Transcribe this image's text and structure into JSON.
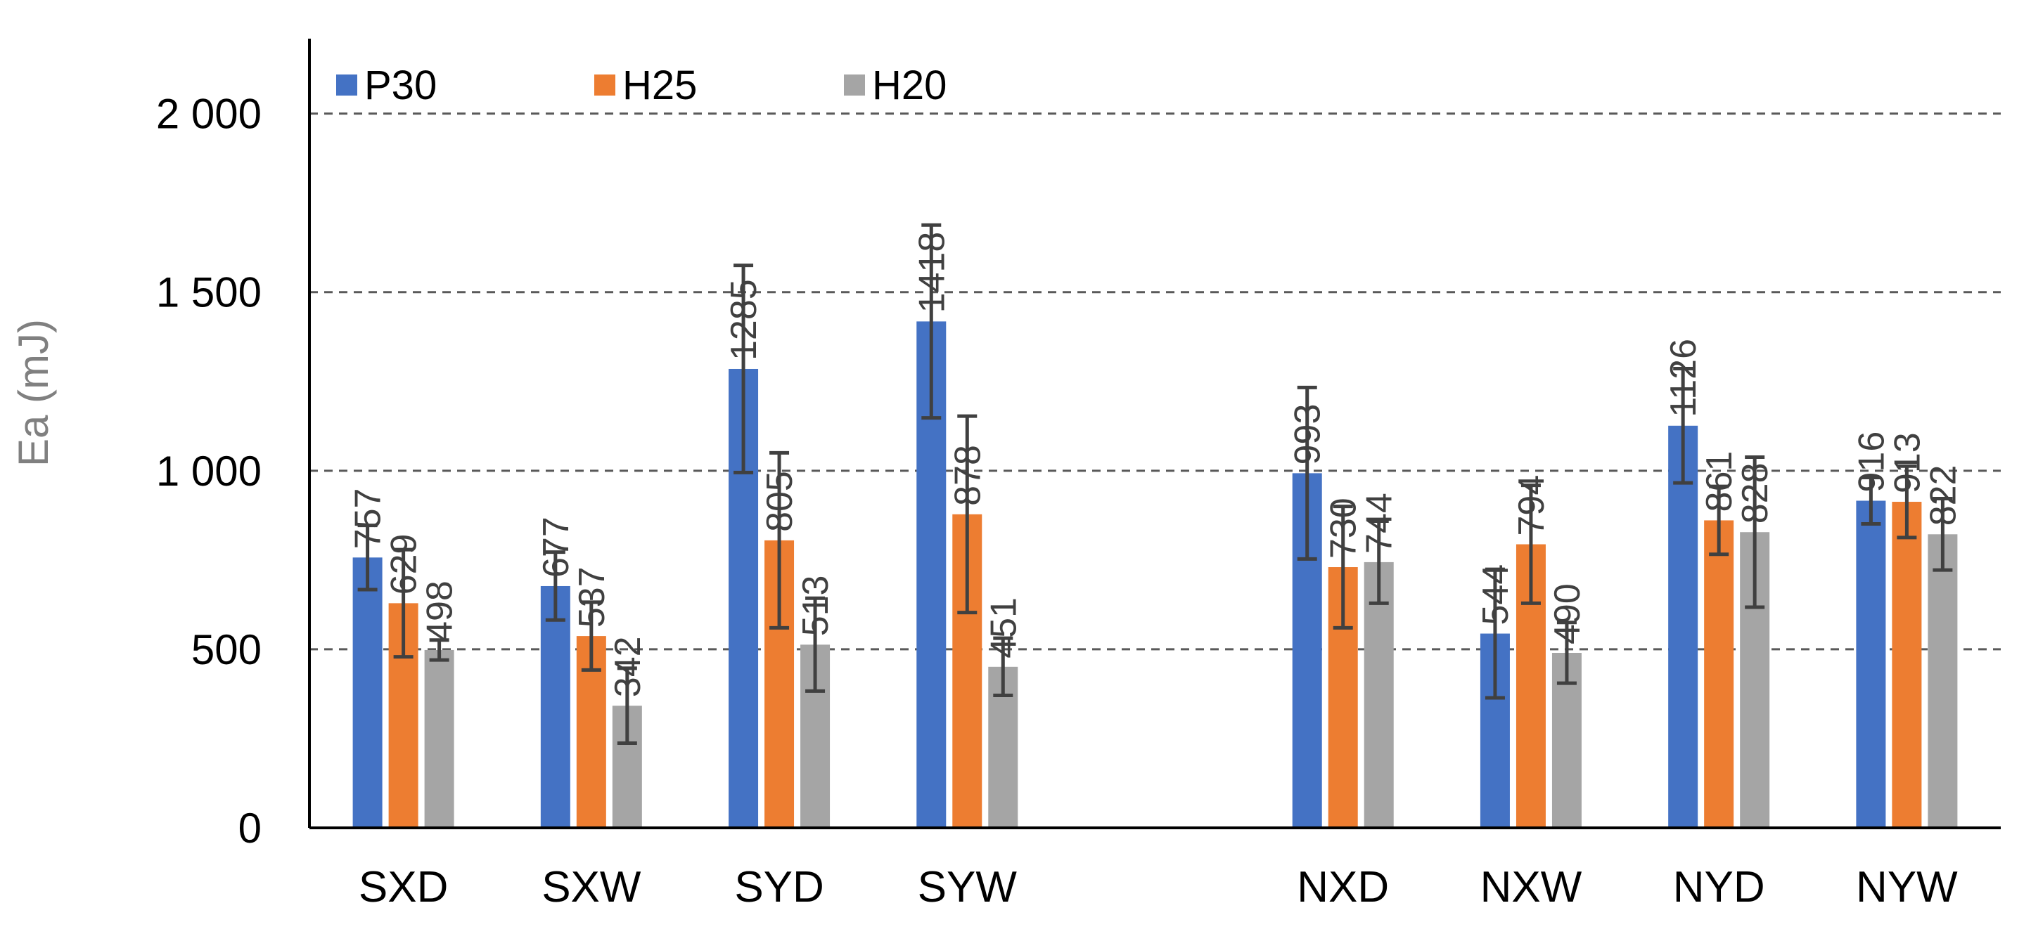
{
  "chart_data": {
    "type": "bar",
    "ylabel": "Ea (mJ)",
    "xlabel": "",
    "ylim": [
      0,
      2200
    ],
    "yticks": [
      0,
      500,
      1000,
      1500,
      2000
    ],
    "ytick_labels": [
      "0",
      "500",
      "1 000",
      "1 500",
      "2 000"
    ],
    "grid": true,
    "legend_position": "top-left",
    "categories": [
      "SXD",
      "SXW",
      "SYD",
      "SYW",
      "",
      "NXD",
      "NXW",
      "NYD",
      "NYW"
    ],
    "series": [
      {
        "name": "P30",
        "color": "#4472C4",
        "values": [
          757,
          677,
          1285,
          1418,
          null,
          993,
          544,
          1126,
          916
        ],
        "errors": [
          90,
          95,
          290,
          270,
          null,
          240,
          180,
          160,
          65
        ]
      },
      {
        "name": "H25",
        "color": "#ED7D31",
        "values": [
          629,
          537,
          805,
          878,
          null,
          730,
          794,
          861,
          913
        ],
        "errors": [
          150,
          95,
          245,
          275,
          null,
          170,
          165,
          95,
          100
        ]
      },
      {
        "name": "H20",
        "color": "#A5A5A5",
        "values": [
          498,
          342,
          513,
          451,
          null,
          744,
          490,
          828,
          822
        ],
        "errors": [
          28,
          105,
          130,
          80,
          null,
          115,
          85,
          210,
          100
        ]
      }
    ]
  }
}
